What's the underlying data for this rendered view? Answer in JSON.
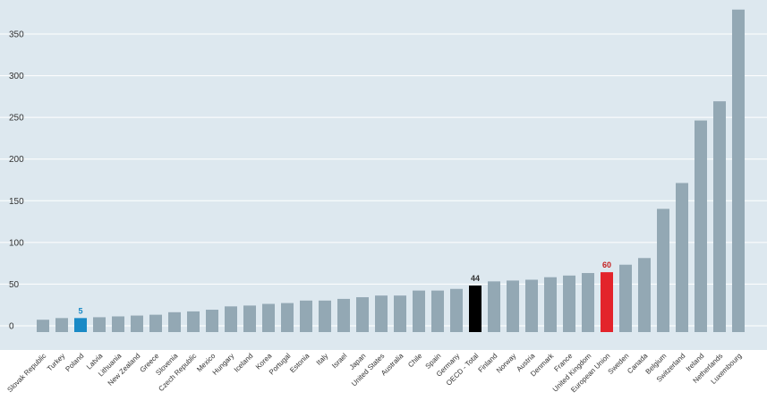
{
  "chart_data": {
    "type": "bar",
    "title": "",
    "xlabel": "",
    "ylabel": "",
    "ylim": [
      -15,
      380
    ],
    "yticks": [
      0,
      50,
      100,
      150,
      200,
      250,
      300,
      350
    ],
    "grid": true,
    "legend": "none",
    "categories": [
      "Slovak Republic",
      "Turkey",
      "Poland",
      "Latvia",
      "Lithuania",
      "New Zealand",
      "Greece",
      "Slovenia",
      "Czech Republic",
      "Mexico",
      "Hungary",
      "Iceland",
      "Korea",
      "Portugal",
      "Estonia",
      "Italy",
      "Israel",
      "Japan",
      "United States",
      "Australia",
      "Chile",
      "Spain",
      "Germany",
      "OECD - Total",
      "Finland",
      "Norway",
      "Austria",
      "Denmark",
      "France",
      "United Kingdom",
      "European Union",
      "Sweden",
      "Canada",
      "Belgium",
      "Switzerland",
      "Ireland",
      "Netherlands",
      "Luxembourg"
    ],
    "values": [
      3,
      5,
      5,
      6,
      7,
      8,
      9,
      12,
      13,
      15,
      19,
      20,
      22,
      23,
      26,
      26,
      28,
      30,
      32,
      32,
      38,
      38,
      40,
      44,
      49,
      50,
      51,
      54,
      56,
      59,
      60,
      69,
      77,
      136,
      167,
      242,
      265,
      375
    ],
    "highlights": [
      {
        "category": "Poland",
        "label": "5",
        "color": "#1a8ac6"
      },
      {
        "category": "OECD - Total",
        "label": "44",
        "color": "#000000",
        "label_color": "#333333"
      },
      {
        "category": "European Union",
        "label": "60",
        "color": "#e3242b",
        "label_color": "#c41e1e"
      }
    ],
    "colors": {
      "bar": "#93a8b4",
      "background": "#dde8ef",
      "grid": "#ffffff",
      "label": "#333333"
    }
  }
}
